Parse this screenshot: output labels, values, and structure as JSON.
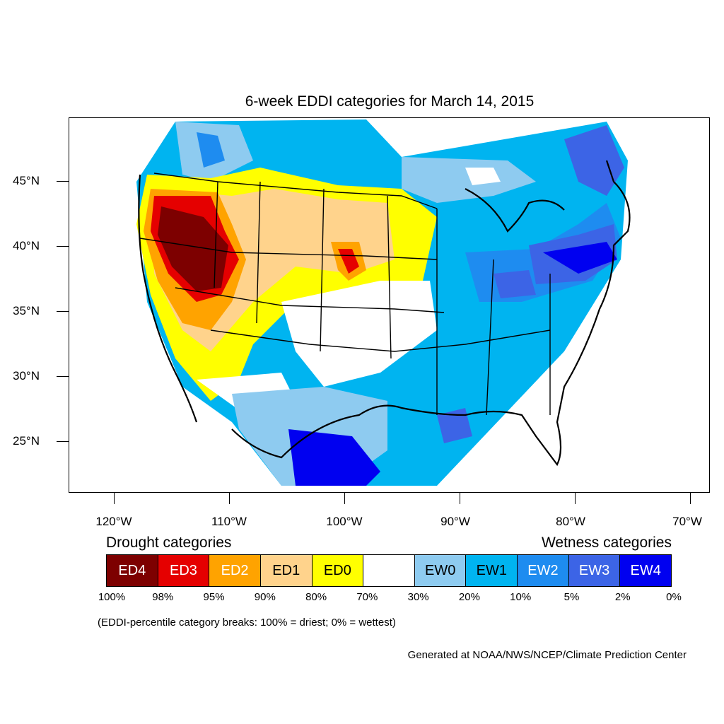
{
  "title": "6-week EDDI categories for March 14, 2015",
  "lat_labels": [
    "45°N",
    "40°N",
    "35°N",
    "30°N",
    "25°N"
  ],
  "lon_labels": [
    "120°W",
    "110°W",
    "100°W",
    "90°W",
    "80°W",
    "70°W"
  ],
  "legend": {
    "drought_heading": "Drought categories",
    "wetness_heading": "Wetness categories",
    "categories": [
      {
        "label": "ED4",
        "color": "#7d0000",
        "text_color": "#ffffff"
      },
      {
        "label": "ED3",
        "color": "#e50000",
        "text_color": "#ffffff"
      },
      {
        "label": "ED2",
        "color": "#ffa300",
        "text_color": "#ffffff"
      },
      {
        "label": "ED1",
        "color": "#ffd38c",
        "text_color": "#000000"
      },
      {
        "label": "ED0",
        "color": "#ffff00",
        "text_color": "#000000"
      },
      {
        "label": "",
        "color": "#ffffff",
        "text_color": "#000000"
      },
      {
        "label": "EW0",
        "color": "#8ecbf0",
        "text_color": "#000000"
      },
      {
        "label": "EW1",
        "color": "#00b4f0",
        "text_color": "#000000"
      },
      {
        "label": "EW2",
        "color": "#1e8cf0",
        "text_color": "#ffffff"
      },
      {
        "label": "EW3",
        "color": "#3c64e6",
        "text_color": "#ffffff"
      },
      {
        "label": "EW4",
        "color": "#0000f0",
        "text_color": "#ffffff"
      }
    ],
    "breaks": [
      "100%",
      "98%",
      "95%",
      "90%",
      "80%",
      "70%",
      "30%",
      "20%",
      "10%",
      "5%",
      "2%",
      "0%"
    ]
  },
  "note": "(EDDI-percentile category breaks: 100% = driest; 0% = wettest)",
  "credit": "Generated at NOAA/NWS/NCEP/Climate Prediction Center"
}
